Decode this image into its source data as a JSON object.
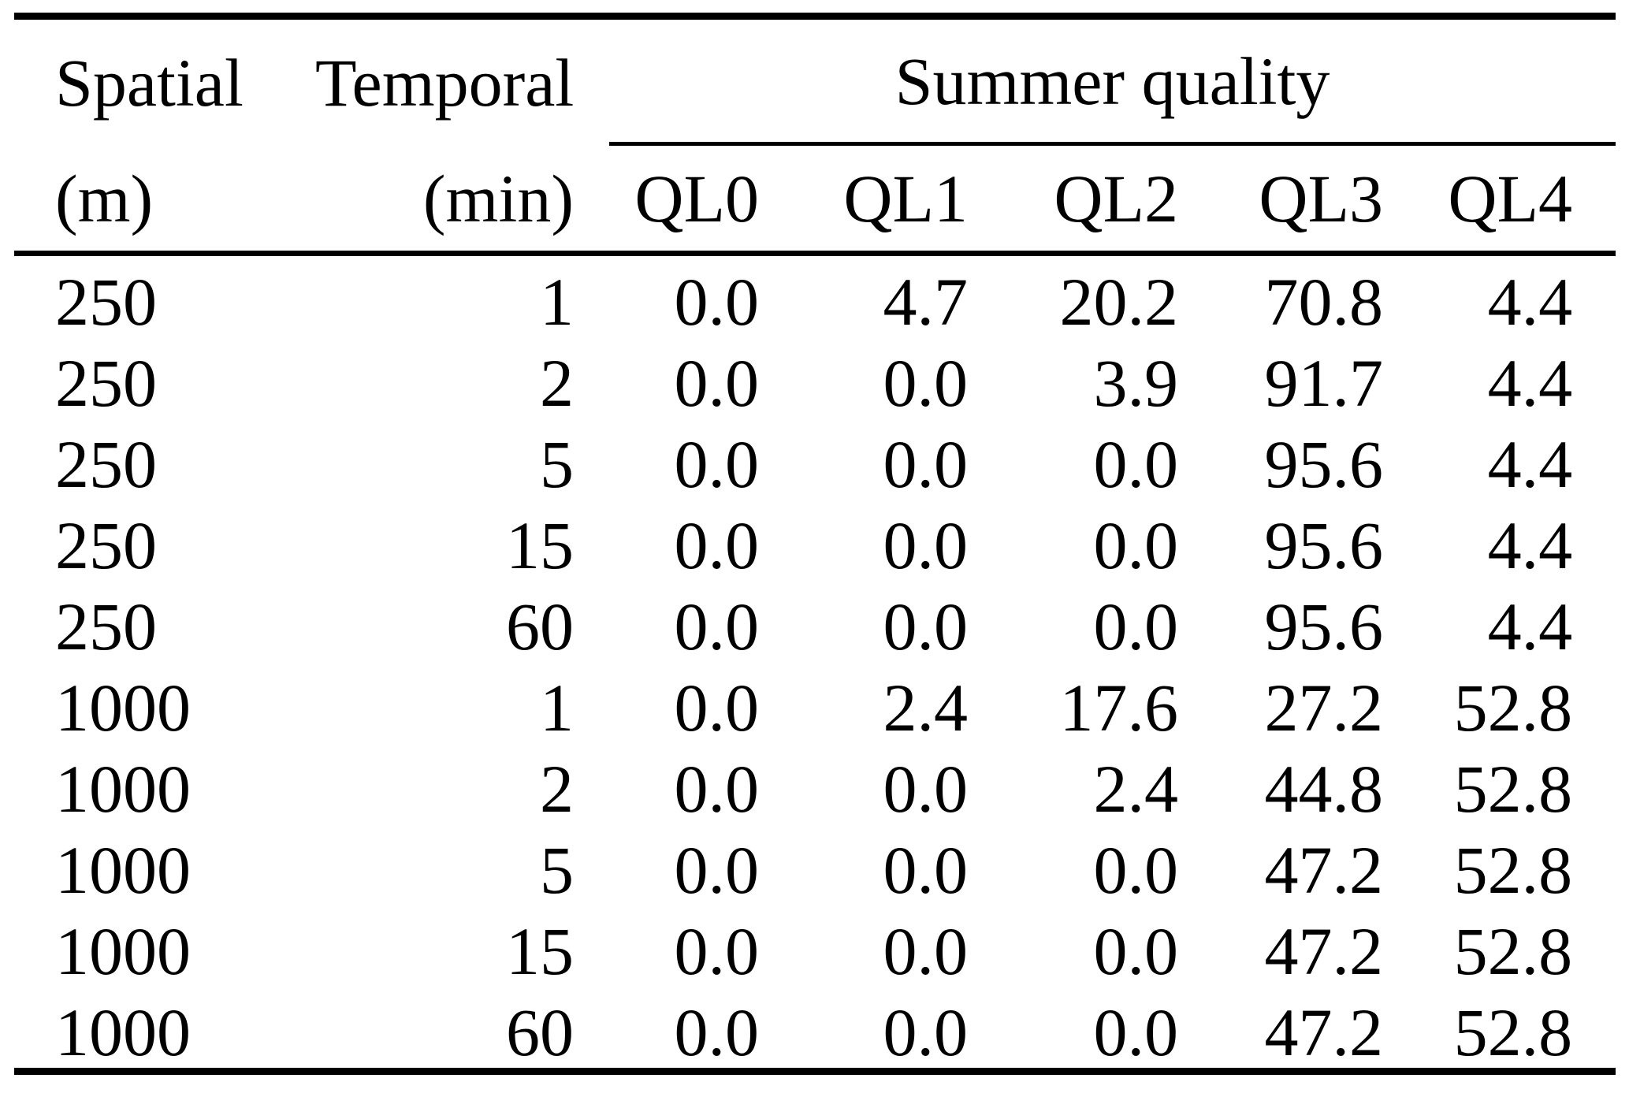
{
  "colors": {
    "text": "#000000",
    "background": "#ffffff",
    "rule": "#000000"
  },
  "table": {
    "header": {
      "col1_label": "Spatial",
      "col1_unit": "(m)",
      "col2_label": "Temporal",
      "col2_unit": "(min)",
      "group_label": "Summer quality",
      "ql_labels": [
        "QL0",
        "QL1",
        "QL2",
        "QL3",
        "QL4"
      ]
    },
    "rows": [
      {
        "spatial": "250",
        "temporal": "1",
        "values": [
          "0.0",
          "4.7",
          "20.2",
          "70.8",
          "4.4"
        ]
      },
      {
        "spatial": "250",
        "temporal": "2",
        "values": [
          "0.0",
          "0.0",
          "3.9",
          "91.7",
          "4.4"
        ]
      },
      {
        "spatial": "250",
        "temporal": "5",
        "values": [
          "0.0",
          "0.0",
          "0.0",
          "95.6",
          "4.4"
        ]
      },
      {
        "spatial": "250",
        "temporal": "15",
        "values": [
          "0.0",
          "0.0",
          "0.0",
          "95.6",
          "4.4"
        ]
      },
      {
        "spatial": "250",
        "temporal": "60",
        "values": [
          "0.0",
          "0.0",
          "0.0",
          "95.6",
          "4.4"
        ]
      },
      {
        "spatial": "1000",
        "temporal": "1",
        "values": [
          "0.0",
          "2.4",
          "17.6",
          "27.2",
          "52.8"
        ]
      },
      {
        "spatial": "1000",
        "temporal": "2",
        "values": [
          "0.0",
          "0.0",
          "2.4",
          "44.8",
          "52.8"
        ]
      },
      {
        "spatial": "1000",
        "temporal": "5",
        "values": [
          "0.0",
          "0.0",
          "0.0",
          "47.2",
          "52.8"
        ]
      },
      {
        "spatial": "1000",
        "temporal": "15",
        "values": [
          "0.0",
          "0.0",
          "0.0",
          "47.2",
          "52.8"
        ]
      },
      {
        "spatial": "1000",
        "temporal": "60",
        "values": [
          "0.0",
          "0.0",
          "0.0",
          "47.2",
          "52.8"
        ]
      }
    ]
  }
}
